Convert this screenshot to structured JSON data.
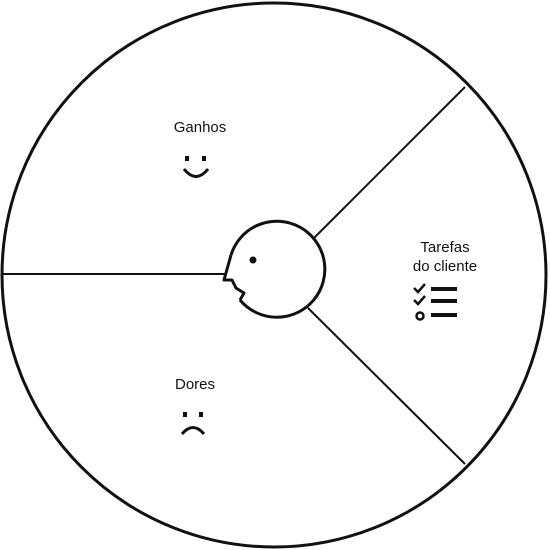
{
  "segments": {
    "gains": {
      "label": "Ganhos",
      "icon": "smiley-face-icon"
    },
    "pains": {
      "label": "Dores",
      "icon": "sad-face-icon"
    },
    "jobs": {
      "label_line1": "Tarefas",
      "label_line2": "do cliente",
      "icon": "task-checklist-icon"
    }
  },
  "center": {
    "icon": "customer-profile-head-icon"
  },
  "colors": {
    "stroke": "#111111",
    "background": "#ffffff"
  }
}
